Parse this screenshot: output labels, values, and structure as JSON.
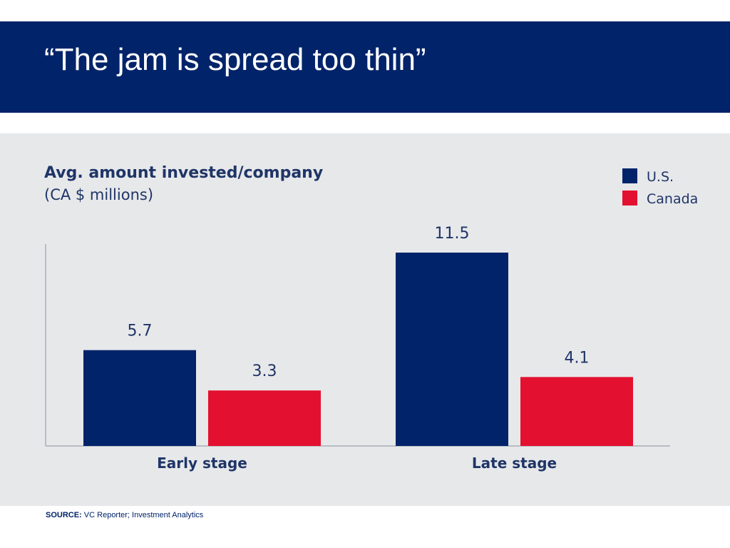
{
  "slide": {
    "title": "“The jam is spread too thin”",
    "header_color": "#002369"
  },
  "source": {
    "label": "SOURCE:",
    "text": "VC Reporter; Investment Analytics"
  },
  "chart_data": {
    "type": "bar",
    "title": "Avg. amount invested/company",
    "subtitle": "(CA $ millions)",
    "categories": [
      "Early stage",
      "Late stage"
    ],
    "series": [
      {
        "name": "U.S.",
        "values": [
          5.7,
          11.5
        ],
        "color": "#002369"
      },
      {
        "name": "Canada",
        "values": [
          3.3,
          4.1
        ],
        "color": "#e4102f"
      }
    ],
    "ylim": [
      0,
      11.5
    ],
    "data_labels": true,
    "grid": false,
    "legend": "top-right"
  }
}
